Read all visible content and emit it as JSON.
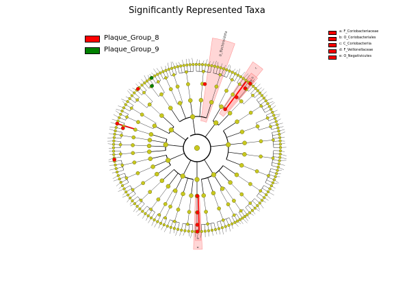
{
  "title": "Significantly Represented Taxa",
  "legend": {
    "groups": [
      {
        "label": "Plaque_Group_8",
        "color": "#ff0000"
      },
      {
        "label": "Plaque_Group_9",
        "color": "#008000"
      }
    ],
    "clades": [
      {
        "label": "a: F_Coriobacteriaceae"
      },
      {
        "label": "b: O_Coriobacteriales"
      },
      {
        "label": "c: C_Coriobacteriia"
      },
      {
        "label": "d: F_Veillonellaceae"
      },
      {
        "label": "e: O_Negativicutes"
      }
    ]
  },
  "highlights": [
    {
      "label": "p_Bacteroidota",
      "color": "#ff0000"
    },
    {
      "label": "c",
      "color": "#ff0000"
    },
    {
      "label": "b",
      "color": "#ff0000"
    },
    {
      "label": "a",
      "color": "#ff0000"
    },
    {
      "label": "e",
      "color": "#ff0000"
    },
    {
      "label": "d",
      "color": "#ff0000"
    }
  ],
  "colors": {
    "node_default": "#c8c81e",
    "node_edge": "#555500",
    "enriched_group_8": "#ff0000",
    "enriched_group_9": "#008000",
    "highlight_fill": "#ffb4b4"
  },
  "tree_levels": [
    "kingdom",
    "phylum",
    "class",
    "order",
    "family",
    "genus",
    "species"
  ]
}
